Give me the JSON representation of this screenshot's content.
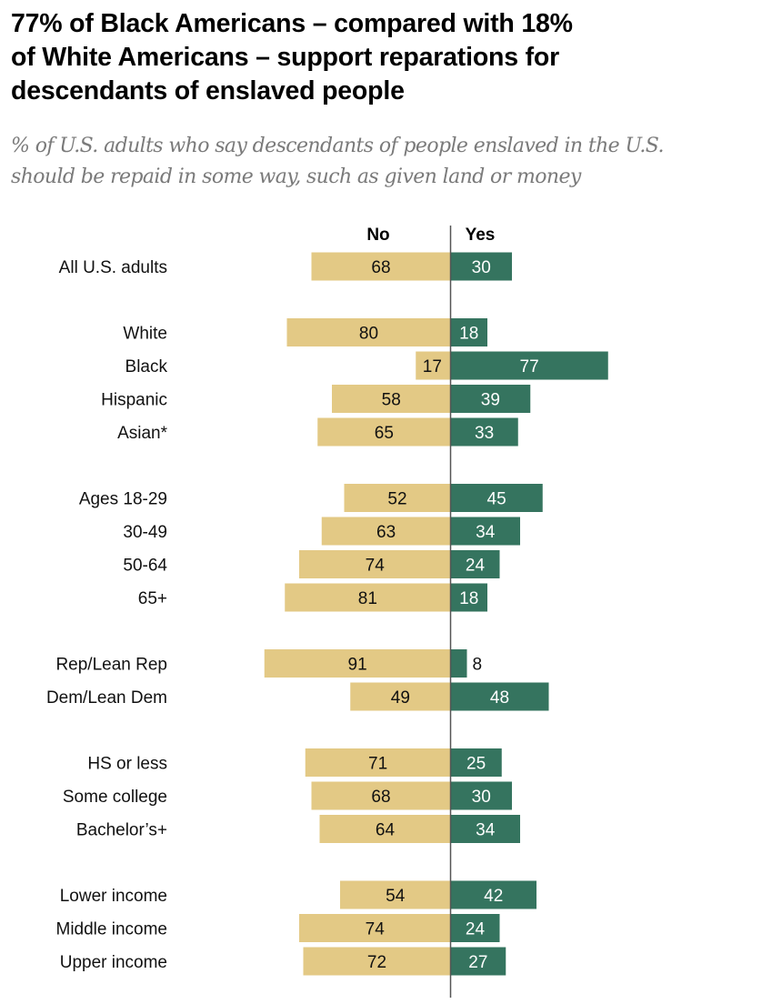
{
  "title": "77% of Black Americans – compared with 18% of White Americans – support reparations for descendants of enslaved people",
  "title_lines": [
    "77% of Black Americans – compared with 18%",
    "of White Americans – support reparations for",
    "descendants of enslaved people"
  ],
  "subtitle_lines": [
    "% of U.S. adults who say descendants of people enslaved in the U.S.",
    "should be repaid in some way, such as given land or money"
  ],
  "colors": {
    "no": "#E3C985",
    "yes": "#35745F",
    "no_text": "#111111",
    "yes_text": "#ffffff",
    "axis": "#555555"
  },
  "chart_data": {
    "type": "bar",
    "orientation": "diverging-horizontal",
    "title": "77% of Black Americans – compared with 18% of White Americans – support reparations for descendants of enslaved people",
    "subtitle": "% of U.S. adults who say descendants of people enslaved in the U.S. should be repaid in some way, such as given land or money",
    "xlabel": "",
    "ylabel": "",
    "xlim": [
      -100,
      100
    ],
    "grid": false,
    "legend": "column headers at top",
    "series_names": [
      "No",
      "Yes"
    ],
    "groups": [
      {
        "categories": [
          "All U.S. adults"
        ],
        "no": [
          68
        ],
        "yes": [
          30
        ]
      },
      {
        "categories": [
          "White",
          "Black",
          "Hispanic",
          "Asian*"
        ],
        "no": [
          80,
          17,
          58,
          65
        ],
        "yes": [
          18,
          77,
          39,
          33
        ]
      },
      {
        "categories": [
          "Ages 18-29",
          "30-49",
          "50-64",
          "65+"
        ],
        "no": [
          52,
          63,
          74,
          81
        ],
        "yes": [
          45,
          34,
          24,
          18
        ]
      },
      {
        "categories": [
          "Rep/Lean Rep",
          "Dem/Lean Dem"
        ],
        "no": [
          91,
          49
        ],
        "yes": [
          8,
          48
        ]
      },
      {
        "categories": [
          "HS or less",
          "Some college",
          "Bachelor’s+"
        ],
        "no": [
          71,
          68,
          64
        ],
        "yes": [
          25,
          30,
          34
        ]
      },
      {
        "categories": [
          "Lower income",
          "Middle income",
          "Upper income"
        ],
        "no": [
          54,
          74,
          72
        ],
        "yes": [
          42,
          24,
          27
        ]
      }
    ]
  }
}
